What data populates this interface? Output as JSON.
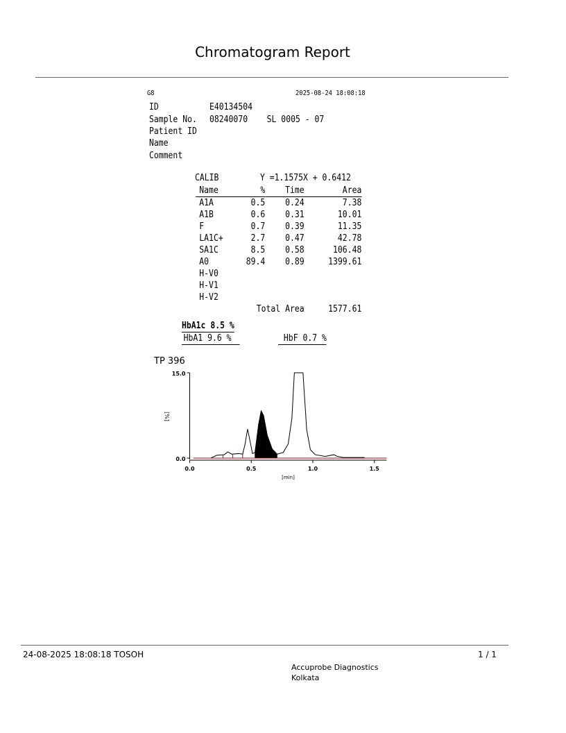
{
  "report": {
    "title": "Chromatogram Report"
  },
  "header": {
    "model": "G8",
    "datetime": "2025-08-24 18:08:18",
    "fields": [
      {
        "label": "ID",
        "value": "E40134504"
      },
      {
        "label": "Sample No.",
        "value": "08240070    SL 0005 - 07"
      },
      {
        "label": "Patient ID",
        "value": ""
      },
      {
        "label": "Name",
        "value": ""
      },
      {
        "label": "Comment",
        "value": ""
      }
    ]
  },
  "calib": {
    "label": "CALIB",
    "equation": "Y =1.1575X + 0.6412"
  },
  "results": {
    "columns": [
      "Name",
      "%",
      "Time",
      "Area"
    ],
    "rows": [
      [
        "A1A",
        "0.5",
        "0.24",
        "7.38"
      ],
      [
        "A1B",
        "0.6",
        "0.31",
        "10.01"
      ],
      [
        "F",
        "0.7",
        "0.39",
        "11.35"
      ],
      [
        "LA1C+",
        "2.7",
        "0.47",
        "42.78"
      ],
      [
        "SA1C",
        "8.5",
        "0.58",
        "106.48"
      ],
      [
        "A0",
        "89.4",
        "0.89",
        "1399.61"
      ],
      [
        "H-V0",
        "",
        "",
        ""
      ],
      [
        "H-V1",
        "",
        "",
        ""
      ],
      [
        "H-V2",
        "",
        "",
        ""
      ]
    ],
    "total_label": "Total Area",
    "total_value": "1577.61"
  },
  "summary": {
    "hba1c": "HbA1c 8.5 %",
    "hba1": "HbA1 9.6 %",
    "hbf": "HbF 0.7 %"
  },
  "chart_data": {
    "type": "line",
    "title": "TP  396",
    "xlabel": "[min]",
    "ylabel": "[%]",
    "xlim": [
      0,
      1.6
    ],
    "ylim": [
      0,
      15
    ],
    "xticks": [
      "0.0",
      "0.5",
      "1.0",
      "1.5"
    ],
    "yticks": [
      "0.0",
      "15.0"
    ],
    "grid": false,
    "baseline_color": "#c00000",
    "filled_peak": {
      "name": "SA1C",
      "from": 0.53,
      "to": 0.71
    },
    "peak_boundaries": [
      0.27,
      0.35,
      0.43,
      0.53,
      0.71
    ],
    "points": [
      [
        0.17,
        0
      ],
      [
        0.22,
        0.5
      ],
      [
        0.28,
        0.6
      ],
      [
        0.31,
        1.1
      ],
      [
        0.34,
        0.7
      ],
      [
        0.4,
        0.8
      ],
      [
        0.43,
        0.7
      ],
      [
        0.45,
        2.5
      ],
      [
        0.47,
        5.1
      ],
      [
        0.49,
        3.0
      ],
      [
        0.51,
        0.8
      ],
      [
        0.53,
        1.0
      ],
      [
        0.56,
        6.0
      ],
      [
        0.58,
        8.3
      ],
      [
        0.6,
        7.5
      ],
      [
        0.63,
        4.0
      ],
      [
        0.67,
        1.6
      ],
      [
        0.71,
        0.7
      ],
      [
        0.76,
        1.0
      ],
      [
        0.8,
        2.5
      ],
      [
        0.83,
        7.0
      ],
      [
        0.85,
        15
      ],
      [
        0.92,
        15
      ],
      [
        0.95,
        5.0
      ],
      [
        0.98,
        1.5
      ],
      [
        1.02,
        0.6
      ],
      [
        1.1,
        0.3
      ],
      [
        1.17,
        0.6
      ],
      [
        1.2,
        0.3
      ],
      [
        1.25,
        0.1
      ],
      [
        1.42,
        0.1
      ]
    ]
  },
  "footer": {
    "printed": "24-08-2025 18:08:18  TOSOH",
    "page": "1 / 1",
    "lab": "Accuprobe Diagnostics",
    "city": "Kolkata"
  }
}
